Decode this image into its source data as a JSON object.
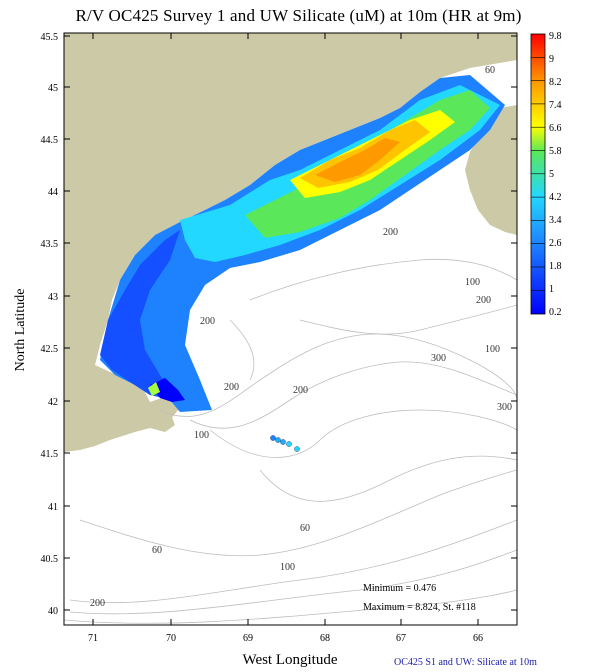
{
  "title": "R/V OC425 Survey 1 and UW Silicate (uM) at 10m (HR at 9m)",
  "axes": {
    "xlabel": "West Longitude",
    "ylabel": "North Latitude",
    "x_ticks": [
      "71",
      "70",
      "69",
      "68",
      "67",
      "66"
    ],
    "y_ticks": [
      "45.5",
      "45",
      "44.5",
      "44",
      "43.5",
      "43",
      "42.5",
      "42",
      "41.5",
      "41",
      "40.5",
      "40"
    ],
    "x_range_west_lon": [
      71.35,
      65.55
    ],
    "y_range_lat": [
      39.85,
      45.5
    ]
  },
  "colorbar": {
    "labels": [
      "9.8",
      "9",
      "8.2",
      "7.4",
      "6.6",
      "5.8",
      "5",
      "4.2",
      "3.4",
      "2.6",
      "1.8",
      "1",
      "0.2"
    ],
    "colors": [
      "#ff0000",
      "#ff5a00",
      "#ff9900",
      "#ffc400",
      "#ffff00",
      "#a6ff3f",
      "#5ae85a",
      "#3fe8c8",
      "#22d8ff",
      "#1aaeff",
      "#1e82ff",
      "#1450ff",
      "#0000ff"
    ]
  },
  "contour_labels": [
    "60",
    "100",
    "200",
    "200",
    "200",
    "200",
    "300",
    "300",
    "100",
    "60",
    "60",
    "100",
    "200",
    "200",
    "100"
  ],
  "stats": {
    "minimum": "Minimum = 0.476",
    "maximum": "Maximum = 8.824, St. #118"
  },
  "footer": "OC425  S1 and UW: Silicate at 10m",
  "colors": {
    "land": "#ccc9a6",
    "water": "#ffffff",
    "contour": "#bdbdbd",
    "frame": "#000000"
  }
}
